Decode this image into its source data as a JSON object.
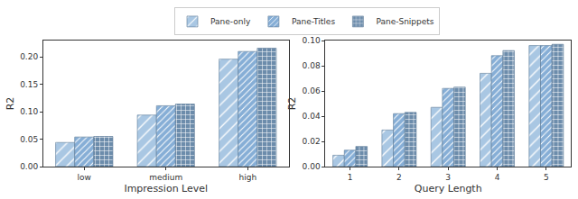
{
  "chart_data": [
    {
      "type": "bar",
      "x_label": "Impression Level",
      "y_label": "R2",
      "categories": [
        "low",
        "medium",
        "high"
      ],
      "series": [
        {
          "name": "Pane-only",
          "color": "#a9c7e3",
          "values": [
            0.044,
            0.094,
            0.196
          ]
        },
        {
          "name": "Pane-Titles",
          "color": "#86aed6",
          "values": [
            0.054,
            0.111,
            0.21
          ]
        },
        {
          "name": "Pane-Snippets",
          "color": "#6c8cab",
          "values": [
            0.055,
            0.114,
            0.216
          ]
        }
      ],
      "ylim": [
        0,
        0.23
      ],
      "yticks": [
        {
          "value": 0,
          "label": "0.00"
        },
        {
          "value": 0.05,
          "label": "0.05"
        },
        {
          "value": 0.1,
          "label": "0.10"
        },
        {
          "value": 0.15,
          "label": "0.15"
        },
        {
          "value": 0.2,
          "label": "0.20"
        }
      ],
      "grid": false,
      "legend": "top"
    },
    {
      "type": "bar",
      "x_label": "Query Length",
      "y_label": "R2",
      "categories": [
        "1",
        "2",
        "3",
        "4",
        "5"
      ],
      "series": [
        {
          "name": "Pane-only",
          "color": "#a9c7e3",
          "values": [
            0.009,
            0.029,
            0.047,
            0.074,
            0.096
          ]
        },
        {
          "name": "Pane-Titles",
          "color": "#86aed6",
          "values": [
            0.013,
            0.042,
            0.062,
            0.088,
            0.096
          ]
        },
        {
          "name": "Pane-Snippets",
          "color": "#6c8cab",
          "values": [
            0.016,
            0.043,
            0.063,
            0.092,
            0.097
          ]
        }
      ],
      "ylim": [
        0,
        0.1
      ],
      "yticks": [
        {
          "value": 0,
          "label": "0.00"
        },
        {
          "value": 0.02,
          "label": "0.02"
        },
        {
          "value": 0.04,
          "label": "0.04"
        },
        {
          "value": 0.06,
          "label": "0.06"
        },
        {
          "value": 0.08,
          "label": "0.08"
        },
        {
          "value": 0.1,
          "label": "0.10"
        }
      ],
      "grid": false
    }
  ]
}
